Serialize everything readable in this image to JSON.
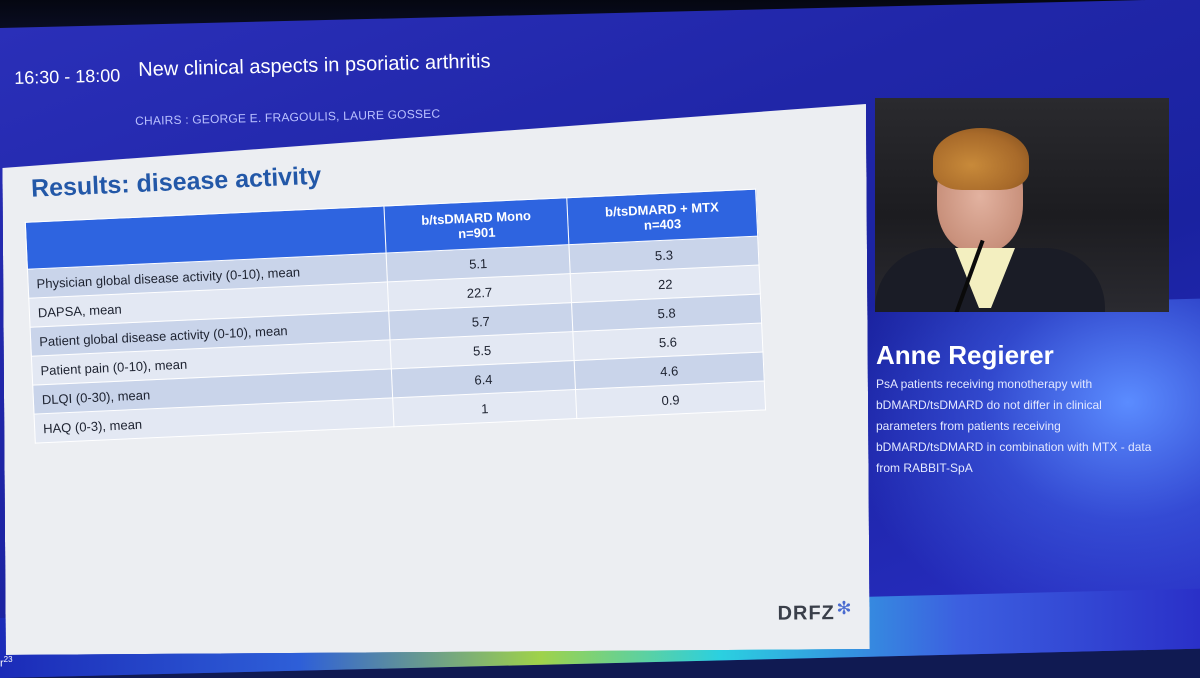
{
  "session": {
    "time": "16:30 - 18:00",
    "title": "New clinical aspects in psoriatic arthritis",
    "chairs": "CHAIRS : GEORGE E. FRAGOULIS, LAURE GOSSEC"
  },
  "slide": {
    "title": "Results: disease activity",
    "columns": [
      {
        "line1": "b/tsDMARD Mono",
        "line2": "n=901"
      },
      {
        "line1": "b/tsDMARD + MTX",
        "line2": "n=403"
      }
    ],
    "rows": [
      {
        "label": "Physician global disease activity (0-10), mean",
        "mono": "5.1",
        "mtx": "5.3"
      },
      {
        "label": "DAPSA, mean",
        "mono": "22.7",
        "mtx": "22"
      },
      {
        "label": "Patient global disease activity (0-10), mean",
        "mono": "5.7",
        "mtx": "5.8"
      },
      {
        "label": "Patient pain (0-10), mean",
        "mono": "5.5",
        "mtx": "5.6"
      },
      {
        "label": "DLQI (0-30), mean",
        "mono": "6.4",
        "mtx": "4.6"
      },
      {
        "label": "HAQ (0-3), mean",
        "mono": "1",
        "mtx": "0.9"
      }
    ],
    "logo": "DRFZ"
  },
  "speaker": {
    "name": "Anne Regierer",
    "description": "PsA patients receiving monotherapy with bDMARD/tsDMARD do not differ in clinical parameters from patients receiving bDMARD/tsDMARD in combination with MTX - data from RABBIT-SpA"
  },
  "footer": {
    "page_prefix": "r",
    "page_sup": "23"
  },
  "colors": {
    "screen_blue": "#2026a8",
    "table_header": "#2e64e0",
    "slide_title": "#2358a8"
  }
}
